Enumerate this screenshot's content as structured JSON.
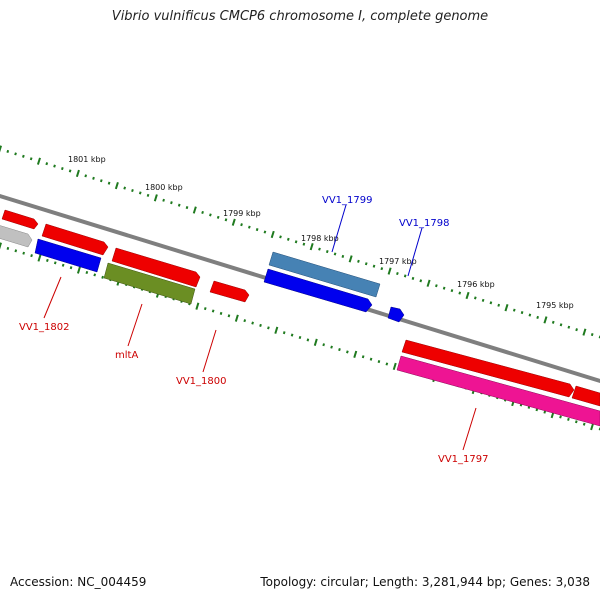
{
  "title": "Vibrio vulnificus CMCP6 chromosome I, complete genome",
  "footer": {
    "accession_label": "Accession: NC_004459",
    "summary": "Topology: circular; Length: 3,281,944 bp; Genes: 3,038"
  },
  "colors": {
    "backbone": "#7f7f7f",
    "tick": "#1f7a1f",
    "forward_gene": "#ee0000",
    "reverse_gene": "#0000ee",
    "steelblue_gene": "#4682b4",
    "olive_gene": "#6b8e23",
    "magenta_gene": "#ee1493",
    "gray_gene": "#c0c0c0",
    "label_red": "#cc0000",
    "label_blue": "#0000cc"
  },
  "kbp_labels": [
    "1801 kbp",
    "1800 kbp",
    "1799 kbp",
    "1798 kbp",
    "1797 kbp",
    "1796 kbp",
    "1795 kbp"
  ],
  "gene_labels": {
    "vv1_1802": "VV1_1802",
    "mltA": "mltA",
    "vv1_1800": "VV1_1800",
    "vv1_1799": "VV1_1799",
    "vv1_1798": "VV1_1798",
    "vv1_1797": "VV1_1797"
  }
}
